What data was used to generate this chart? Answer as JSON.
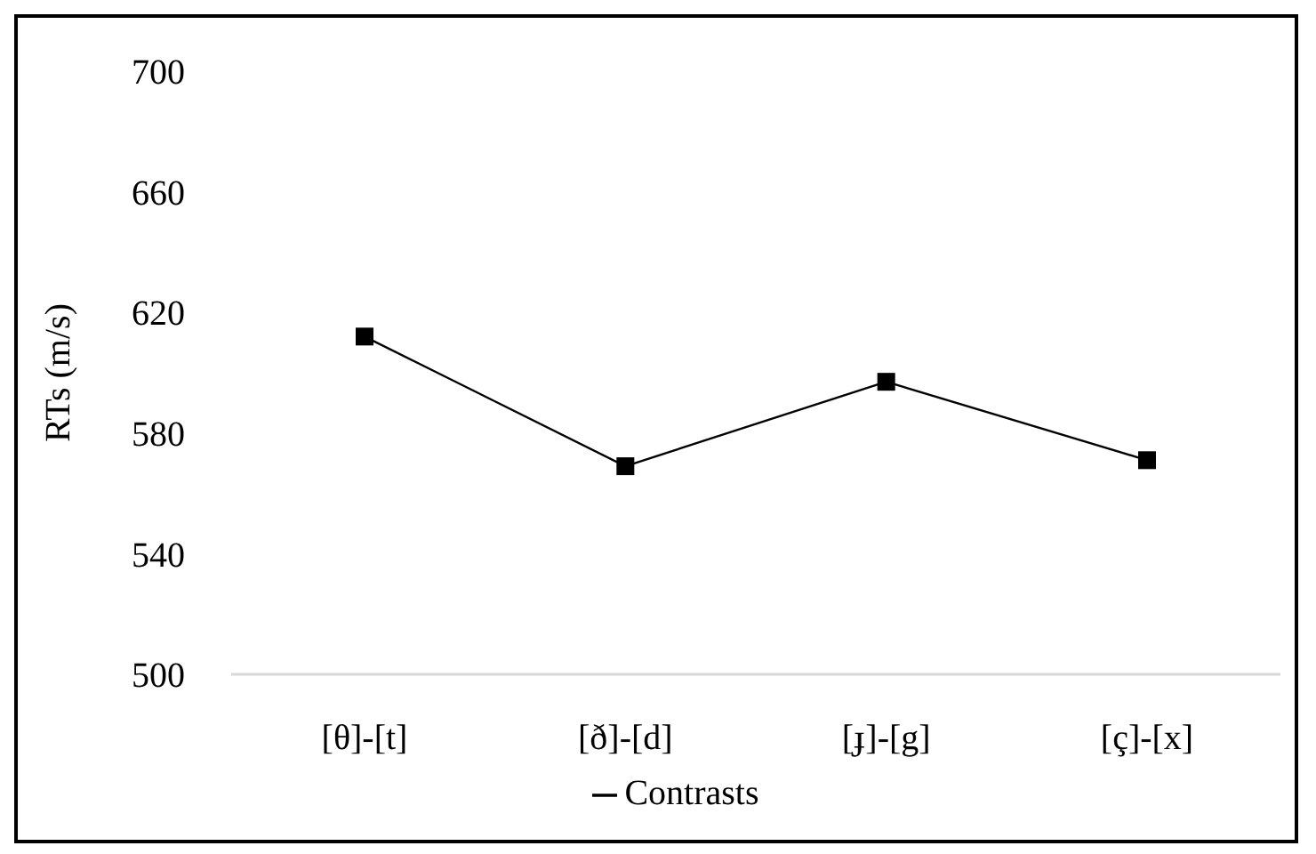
{
  "chart_data": {
    "type": "line",
    "ylabel": "RTs (m/s)",
    "categories": [
      "[θ]-[t]",
      "[ð]-[d]",
      "[ɟ]-[g]",
      "[ç]-[x]"
    ],
    "series": [
      {
        "name": "Contrasts",
        "color": "#000000",
        "values": [
          612,
          569,
          597,
          571
        ]
      }
    ],
    "ylim": [
      500,
      700
    ],
    "yticks": [
      500,
      540,
      580,
      620,
      660,
      700
    ],
    "grid": false,
    "legend": "bottom",
    "marker": "square",
    "line_style": "solid"
  }
}
